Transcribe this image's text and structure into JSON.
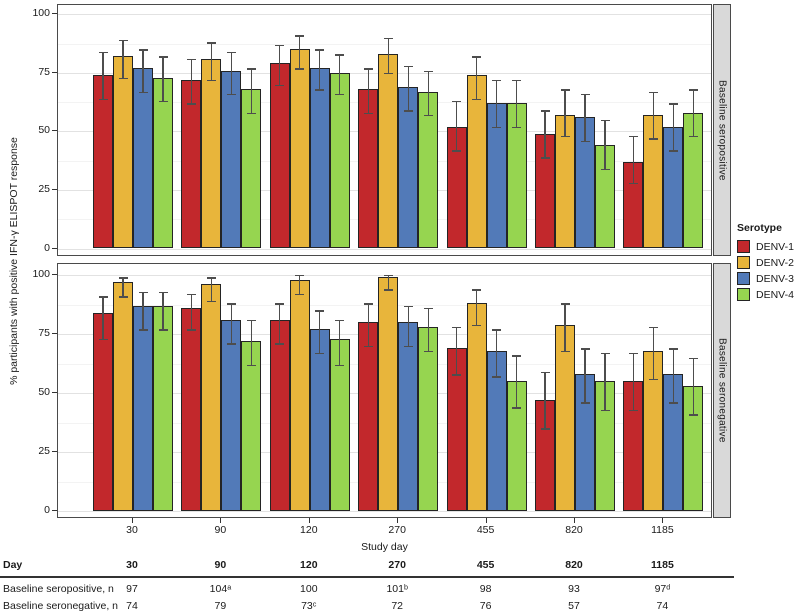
{
  "figure": {
    "y_axis_title": "% participants with positive IFN-γ ELISPOT response",
    "x_axis_title": "Study day",
    "y_ticks": [
      0,
      25,
      50,
      75,
      100
    ],
    "facet_labels": [
      "Baseline seropositive",
      "Baseline seronegative"
    ]
  },
  "legend": {
    "title": "Serotype",
    "items": [
      {
        "label": "DENV-1",
        "color": "#c2282c"
      },
      {
        "label": "DENV-2",
        "color": "#e8b53b"
      },
      {
        "label": "DENV-3",
        "color": "#527ab8"
      },
      {
        "label": "DENV-4",
        "color": "#96d550"
      }
    ]
  },
  "chart_data": {
    "type": "bar",
    "title": "",
    "xlabel": "Study day",
    "ylabel": "% participants with positive IFN-γ ELISPOT response",
    "categories": [
      "30",
      "90",
      "120",
      "270",
      "455",
      "820",
      "1185"
    ],
    "ylim": [
      0,
      100
    ],
    "grid": true,
    "legend_position": "right",
    "error_bars": true,
    "panels": [
      {
        "facet_label": "Baseline seropositive",
        "series": [
          {
            "name": "DENV-1",
            "color": "#c2282c",
            "values": [
              74,
              72,
              79,
              68,
              52,
              49,
              37
            ],
            "ci_low": [
              64,
              62,
              70,
              58,
              42,
              39,
              28
            ],
            "ci_high": [
              84,
              81,
              87,
              77,
              63,
              59,
              48
            ]
          },
          {
            "name": "DENV-2",
            "color": "#e8b53b",
            "values": [
              82,
              81,
              85,
              83,
              74,
              57,
              57
            ],
            "ci_low": [
              73,
              72,
              77,
              75,
              64,
              48,
              47
            ],
            "ci_high": [
              89,
              88,
              91,
              90,
              82,
              68,
              67
            ]
          },
          {
            "name": "DENV-3",
            "color": "#527ab8",
            "values": [
              77,
              76,
              77,
              69,
              62,
              56,
              52
            ],
            "ci_low": [
              67,
              66,
              68,
              59,
              52,
              46,
              42
            ],
            "ci_high": [
              85,
              84,
              85,
              78,
              72,
              66,
              62
            ]
          },
          {
            "name": "DENV-4",
            "color": "#96d550",
            "values": [
              73,
              68,
              75,
              67,
              62,
              44,
              58
            ],
            "ci_low": [
              63,
              58,
              66,
              57,
              52,
              34,
              48
            ],
            "ci_high": [
              82,
              77,
              83,
              76,
              72,
              55,
              68
            ]
          }
        ]
      },
      {
        "facet_label": "Baseline seronegative",
        "series": [
          {
            "name": "DENV-1",
            "color": "#c2282c",
            "values": [
              84,
              86,
              81,
              80,
              69,
              47,
              55
            ],
            "ci_low": [
              73,
              77,
              71,
              70,
              58,
              35,
              43
            ],
            "ci_high": [
              91,
              92,
              88,
              88,
              78,
              59,
              67
            ]
          },
          {
            "name": "DENV-2",
            "color": "#e8b53b",
            "values": [
              97,
              96,
              98,
              99,
              88,
              79,
              68
            ],
            "ci_low": [
              91,
              89,
              92,
              94,
              79,
              68,
              56
            ],
            "ci_high": [
              99,
              99,
              100,
              100,
              94,
              88,
              78
            ]
          },
          {
            "name": "DENV-3",
            "color": "#527ab8",
            "values": [
              87,
              81,
              77,
              80,
              68,
              58,
              58
            ],
            "ci_low": [
              77,
              71,
              67,
              70,
              57,
              46,
              46
            ],
            "ci_high": [
              93,
              88,
              85,
              87,
              77,
              69,
              69
            ]
          },
          {
            "name": "DENV-4",
            "color": "#96d550",
            "values": [
              87,
              72,
              73,
              78,
              55,
              55,
              53
            ],
            "ci_low": [
              77,
              62,
              62,
              68,
              44,
              43,
              41
            ],
            "ci_high": [
              93,
              81,
              81,
              86,
              66,
              67,
              65
            ]
          }
        ]
      }
    ]
  },
  "table": {
    "header_label": "Day",
    "columns": [
      "30",
      "90",
      "120",
      "270",
      "455",
      "820",
      "1185"
    ],
    "rows": [
      {
        "label": "Baseline seropositive, n",
        "values": [
          "97",
          "104ᵃ",
          "100",
          "101ᵇ",
          "98",
          "93",
          "97ᵈ"
        ]
      },
      {
        "label": "Baseline seronegative, n",
        "values": [
          "74",
          "79",
          "73ᶜ",
          "72",
          "76",
          "57",
          "74"
        ]
      }
    ]
  }
}
